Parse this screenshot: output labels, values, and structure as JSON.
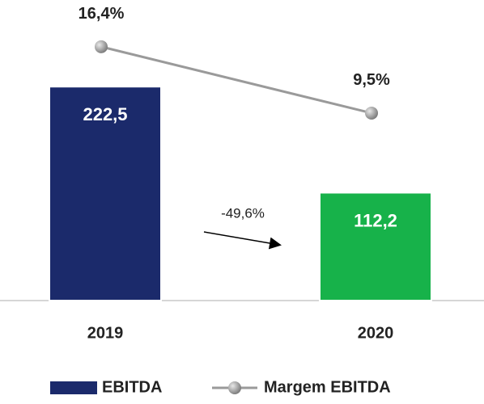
{
  "chart_data": {
    "type": "bar_line",
    "categories": [
      "2019",
      "2020"
    ],
    "series": [
      {
        "name": "EBITDA",
        "type": "bar",
        "color": "#1b2a6b",
        "colors": [
          "#1b2a6b",
          "#17b24a"
        ],
        "values": [
          222.5,
          112.2
        ],
        "value_labels": [
          "222,5",
          "112,2"
        ]
      },
      {
        "name": "Margem EBITDA",
        "type": "line",
        "axis": "y2",
        "color": "#9a9a9a",
        "values": [
          16.4,
          9.5
        ],
        "value_labels": [
          "16,4%",
          "9,5%"
        ]
      }
    ],
    "ylim": [
      0,
      300
    ],
    "y2lim": [
      -10,
      20
    ],
    "annotations": [
      "-49,6%"
    ]
  }
}
